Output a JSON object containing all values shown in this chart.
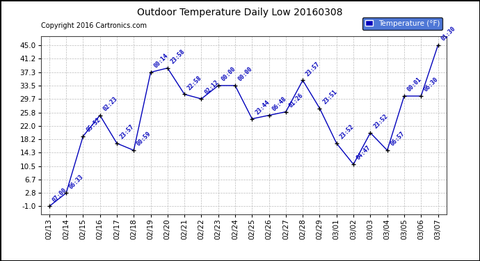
{
  "title": "Outdoor Temperature Daily Low 20160308",
  "copyright": "Copyright 2016 Cartronics.com",
  "legend_label": "Temperature (°F)",
  "background_color": "#ffffff",
  "line_color": "#0000bb",
  "point_color": "#000000",
  "label_color": "#0000bb",
  "ylim": [
    -1.0,
    45.0
  ],
  "yticks": [
    -1.0,
    2.8,
    6.7,
    10.5,
    14.3,
    18.2,
    22.0,
    25.8,
    29.7,
    33.5,
    37.3,
    41.2,
    45.0
  ],
  "ytick_labels": [
    "-1.0",
    "2.8",
    "6.7",
    "10.5",
    "14.3",
    "18.2",
    "22.0",
    "25.8",
    "29.7",
    "33.5",
    "37.3",
    "41.2",
    "45.0"
  ],
  "dates": [
    "02/13",
    "02/14",
    "02/15",
    "02/16",
    "02/17",
    "02/18",
    "02/19",
    "02/20",
    "02/21",
    "02/22",
    "02/23",
    "02/24",
    "02/25",
    "02/26",
    "02/27",
    "02/28",
    "02/29",
    "03/01",
    "03/02",
    "03/03",
    "03/04",
    "03/05",
    "03/06",
    "03/07"
  ],
  "values": [
    -1.0,
    2.8,
    19.0,
    25.0,
    17.0,
    15.0,
    37.3,
    38.5,
    31.0,
    29.7,
    33.5,
    33.5,
    24.0,
    25.0,
    26.0,
    35.0,
    27.0,
    17.0,
    11.0,
    20.0,
    15.0,
    30.5,
    30.5,
    45.0
  ],
  "time_labels": [
    "07:00",
    "06:33",
    "05:52",
    "02:23",
    "23:57",
    "00:59",
    "00:14",
    "23:58",
    "22:58",
    "02:12",
    "00:00",
    "00:00",
    "23:44",
    "06:48",
    "01:26",
    "23:57",
    "23:51",
    "23:52",
    "04:47",
    "23:52",
    "06:57",
    "00:01",
    "06:30",
    "01:30"
  ]
}
